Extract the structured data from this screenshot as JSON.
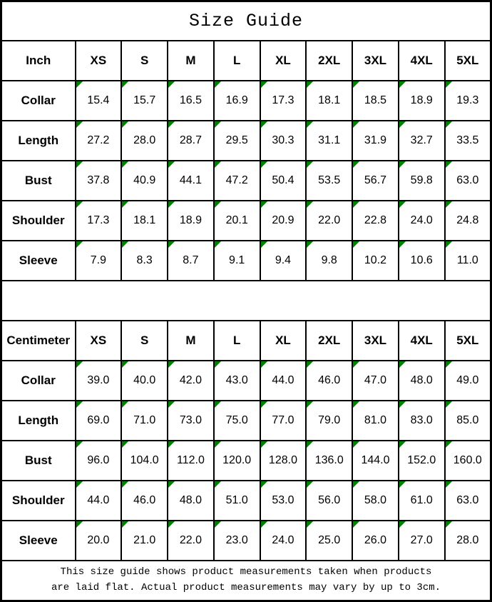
{
  "title": "Size Guide",
  "sizes": [
    "XS",
    "S",
    "M",
    "L",
    "XL",
    "2XL",
    "3XL",
    "4XL",
    "5XL"
  ],
  "tables": [
    {
      "unit_label": "Inch",
      "rows": [
        {
          "label": "Collar",
          "values": [
            "15.4",
            "15.7",
            "16.5",
            "16.9",
            "17.3",
            "18.1",
            "18.5",
            "18.9",
            "19.3"
          ]
        },
        {
          "label": "Length",
          "values": [
            "27.2",
            "28.0",
            "28.7",
            "29.5",
            "30.3",
            "31.1",
            "31.9",
            "32.7",
            "33.5"
          ]
        },
        {
          "label": "Bust",
          "values": [
            "37.8",
            "40.9",
            "44.1",
            "47.2",
            "50.4",
            "53.5",
            "56.7",
            "59.8",
            "63.0"
          ]
        },
        {
          "label": "Shoulder",
          "values": [
            "17.3",
            "18.1",
            "18.9",
            "20.1",
            "20.9",
            "22.0",
            "22.8",
            "24.0",
            "24.8"
          ]
        },
        {
          "label": "Sleeve",
          "values": [
            "7.9",
            "8.3",
            "8.7",
            "9.1",
            "9.4",
            "9.8",
            "10.2",
            "10.6",
            "11.0"
          ]
        }
      ]
    },
    {
      "unit_label": "Centimeter",
      "rows": [
        {
          "label": "Collar",
          "values": [
            "39.0",
            "40.0",
            "42.0",
            "43.0",
            "44.0",
            "46.0",
            "47.0",
            "48.0",
            "49.0"
          ]
        },
        {
          "label": "Length",
          "values": [
            "69.0",
            "71.0",
            "73.0",
            "75.0",
            "77.0",
            "79.0",
            "81.0",
            "83.0",
            "85.0"
          ]
        },
        {
          "label": "Bust",
          "values": [
            "96.0",
            "104.0",
            "112.0",
            "120.0",
            "128.0",
            "136.0",
            "144.0",
            "152.0",
            "160.0"
          ]
        },
        {
          "label": "Shoulder",
          "values": [
            "44.0",
            "46.0",
            "48.0",
            "51.0",
            "53.0",
            "56.0",
            "58.0",
            "61.0",
            "63.0"
          ]
        },
        {
          "label": "Sleeve",
          "values": [
            "20.0",
            "21.0",
            "22.0",
            "23.0",
            "24.0",
            "25.0",
            "26.0",
            "27.0",
            "28.0"
          ]
        }
      ]
    }
  ],
  "footer": {
    "line1": "This size guide shows product measurements taken when products",
    "line2": "are laid flat. Actual product measurements may vary by up to 3cm."
  },
  "colors": {
    "marker_green": "#008000",
    "border": "#000000",
    "background": "#ffffff",
    "text": "#000000"
  }
}
